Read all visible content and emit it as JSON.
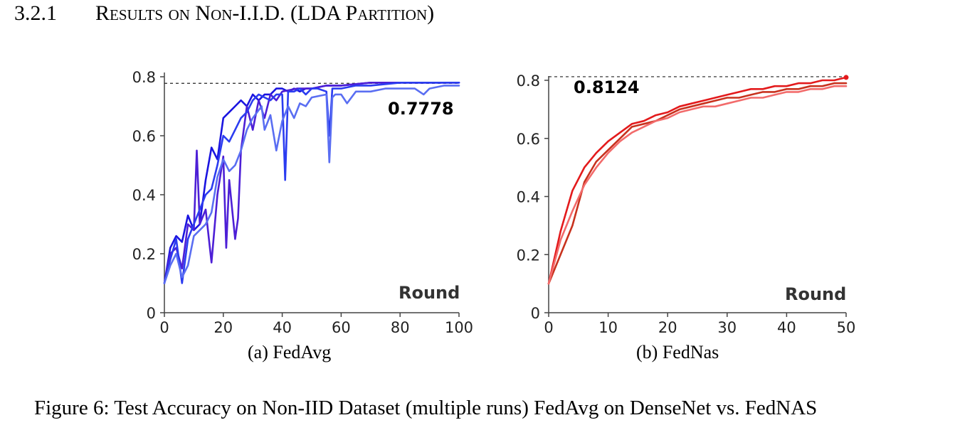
{
  "heading": {
    "number": "3.2.1",
    "title": "Results on Non-I.I.D. (LDA Partition)"
  },
  "figure_caption": "Figure 6: Test Accuracy on Non-IID Dataset (multiple runs) FedAvg on DenseNet vs. FedNAS",
  "chart_data": [
    {
      "type": "line",
      "subcaption": "(a) FedAvg",
      "xlabel": "Round",
      "ylabel": "",
      "xlim": [
        0,
        100
      ],
      "ylim": [
        0,
        0.8
      ],
      "xticks": [
        0,
        20,
        40,
        60,
        80,
        100
      ],
      "yticks": [
        0,
        0.2,
        0.4,
        0.6,
        0.8
      ],
      "xtick_labels": [
        "0",
        "20",
        "40",
        "60",
        "80",
        "100"
      ],
      "ytick_labels": [
        "0",
        "0.2",
        "0.4",
        "0.6",
        "0.8"
      ],
      "grid": false,
      "reference_line": 0.7778,
      "annotation": "0.7778",
      "colors": [
        "#1a14e0",
        "#4d1fd6",
        "#2b3cf0",
        "#5a6ef2"
      ],
      "series": [
        {
          "color": "#1a14e0",
          "x": [
            0,
            2,
            4,
            6,
            8,
            10,
            12,
            14,
            16,
            18,
            20,
            22,
            24,
            26,
            28,
            30,
            32,
            34,
            36,
            38,
            40,
            42,
            44,
            46,
            48,
            50,
            55,
            60,
            70,
            80,
            90,
            100
          ],
          "y": [
            0.1,
            0.22,
            0.26,
            0.24,
            0.33,
            0.28,
            0.3,
            0.45,
            0.56,
            0.52,
            0.66,
            0.68,
            0.7,
            0.72,
            0.7,
            0.74,
            0.72,
            0.74,
            0.74,
            0.76,
            0.76,
            0.75,
            0.76,
            0.75,
            0.76,
            0.76,
            0.77,
            0.77,
            0.78,
            0.78,
            0.78,
            0.78
          ]
        },
        {
          "color": "#4d1fd6",
          "x": [
            0,
            2,
            4,
            6,
            8,
            10,
            11,
            12,
            14,
            16,
            18,
            20,
            21,
            22,
            24,
            25,
            26,
            28,
            30,
            32,
            34,
            36,
            38,
            40,
            45,
            50,
            55,
            60,
            70,
            80,
            90,
            100
          ],
          "y": [
            0.1,
            0.2,
            0.22,
            0.15,
            0.3,
            0.28,
            0.55,
            0.3,
            0.35,
            0.17,
            0.4,
            0.53,
            0.22,
            0.45,
            0.25,
            0.32,
            0.55,
            0.7,
            0.62,
            0.72,
            0.66,
            0.74,
            0.72,
            0.75,
            0.76,
            0.76,
            0.77,
            0.77,
            0.78,
            0.78,
            0.78,
            0.78
          ]
        },
        {
          "color": "#2b3cf0",
          "x": [
            0,
            2,
            4,
            6,
            8,
            10,
            12,
            14,
            16,
            18,
            20,
            22,
            24,
            26,
            28,
            30,
            32,
            34,
            36,
            38,
            40,
            41,
            42,
            44,
            46,
            48,
            50,
            52,
            55,
            56,
            57,
            58,
            60,
            65,
            70,
            80,
            90,
            100
          ],
          "y": [
            0.1,
            0.18,
            0.25,
            0.1,
            0.25,
            0.3,
            0.35,
            0.4,
            0.42,
            0.5,
            0.6,
            0.58,
            0.62,
            0.66,
            0.68,
            0.72,
            0.74,
            0.73,
            0.72,
            0.74,
            0.74,
            0.45,
            0.75,
            0.75,
            0.76,
            0.74,
            0.76,
            0.76,
            0.75,
            0.6,
            0.76,
            0.76,
            0.76,
            0.77,
            0.77,
            0.78,
            0.78,
            0.78
          ]
        },
        {
          "color": "#5a6ef2",
          "x": [
            0,
            2,
            4,
            6,
            8,
            10,
            12,
            14,
            16,
            18,
            20,
            22,
            24,
            26,
            28,
            30,
            33,
            34,
            36,
            38,
            40,
            42,
            44,
            46,
            48,
            50,
            55,
            56,
            57,
            58,
            60,
            62,
            65,
            70,
            75,
            80,
            85,
            88,
            90,
            95,
            100
          ],
          "y": [
            0.1,
            0.16,
            0.2,
            0.12,
            0.16,
            0.26,
            0.28,
            0.3,
            0.34,
            0.46,
            0.52,
            0.48,
            0.5,
            0.55,
            0.62,
            0.66,
            0.7,
            0.62,
            0.67,
            0.55,
            0.65,
            0.7,
            0.66,
            0.71,
            0.7,
            0.73,
            0.74,
            0.51,
            0.73,
            0.74,
            0.74,
            0.71,
            0.75,
            0.75,
            0.76,
            0.76,
            0.76,
            0.74,
            0.76,
            0.77,
            0.77
          ]
        }
      ]
    },
    {
      "type": "line",
      "subcaption": "(b) FedNas",
      "xlabel": "Round",
      "ylabel": "",
      "xlim": [
        0,
        50
      ],
      "ylim": [
        0,
        0.8
      ],
      "xticks": [
        0,
        10,
        20,
        30,
        40,
        50
      ],
      "yticks": [
        0,
        0.2,
        0.4,
        0.6,
        0.8
      ],
      "xtick_labels": [
        "0",
        "10",
        "20",
        "30",
        "40",
        "50"
      ],
      "ytick_labels": [
        "0",
        "0.2",
        "0.4",
        "0.6",
        "0.8"
      ],
      "grid": false,
      "reference_line": 0.8124,
      "annotation": "0.8124",
      "colors": [
        "#e31a1c",
        "#c8321e",
        "#f26b6b"
      ],
      "series": [
        {
          "color": "#e31a1c",
          "x": [
            0,
            2,
            4,
            6,
            8,
            10,
            12,
            14,
            16,
            18,
            20,
            22,
            24,
            26,
            28,
            30,
            32,
            34,
            36,
            38,
            40,
            42,
            44,
            46,
            48,
            50
          ],
          "y": [
            0.1,
            0.28,
            0.42,
            0.5,
            0.55,
            0.59,
            0.62,
            0.65,
            0.66,
            0.68,
            0.69,
            0.71,
            0.72,
            0.73,
            0.74,
            0.75,
            0.76,
            0.77,
            0.77,
            0.78,
            0.78,
            0.79,
            0.79,
            0.8,
            0.8,
            0.81
          ]
        },
        {
          "color": "#c8321e",
          "x": [
            0,
            2,
            4,
            6,
            8,
            10,
            12,
            14,
            16,
            18,
            20,
            22,
            24,
            26,
            28,
            30,
            32,
            34,
            36,
            38,
            40,
            42,
            44,
            46,
            48,
            50
          ],
          "y": [
            0.1,
            0.2,
            0.3,
            0.45,
            0.52,
            0.56,
            0.6,
            0.64,
            0.65,
            0.66,
            0.68,
            0.7,
            0.71,
            0.72,
            0.73,
            0.74,
            0.74,
            0.75,
            0.76,
            0.76,
            0.77,
            0.77,
            0.78,
            0.78,
            0.79,
            0.79
          ]
        },
        {
          "color": "#f26b6b",
          "x": [
            0,
            2,
            4,
            6,
            8,
            10,
            12,
            14,
            16,
            18,
            20,
            22,
            24,
            26,
            28,
            30,
            32,
            34,
            36,
            38,
            40,
            42,
            44,
            46,
            48,
            50
          ],
          "y": [
            0.1,
            0.25,
            0.35,
            0.44,
            0.5,
            0.55,
            0.59,
            0.62,
            0.64,
            0.66,
            0.67,
            0.69,
            0.7,
            0.71,
            0.71,
            0.72,
            0.73,
            0.74,
            0.74,
            0.75,
            0.76,
            0.76,
            0.77,
            0.77,
            0.78,
            0.78
          ]
        }
      ]
    }
  ]
}
